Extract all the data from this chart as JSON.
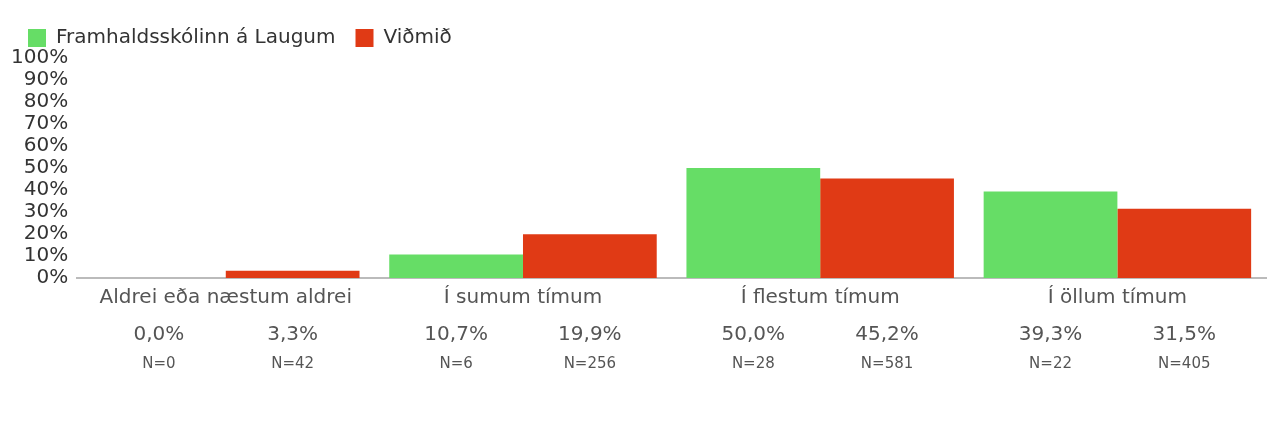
{
  "chart_data": {
    "type": "bar",
    "categories": [
      "Aldrei eða næstum aldrei",
      "Í sumum tímum",
      "Í flestum tímum",
      "Í öllum tímum"
    ],
    "series": [
      {
        "name": "Framhaldsskólinn á Laugum",
        "color": "#66dd66",
        "values": [
          0.0,
          10.7,
          50.0,
          39.3
        ],
        "value_labels": [
          "0,0%",
          "10,7%",
          "50,0%",
          "39,3%"
        ]
      },
      {
        "name": "Viðmið",
        "color": "#e03a15",
        "values": [
          3.3,
          19.9,
          45.2,
          31.5
        ],
        "value_labels": [
          "3,3%",
          "19,9%",
          "45,2%",
          "31,5%"
        ]
      }
    ],
    "ylim": [
      0,
      100
    ],
    "yticks": [
      {
        "value": 0,
        "label": "0%"
      },
      {
        "value": 10,
        "label": "10%"
      },
      {
        "value": 20,
        "label": "20%"
      },
      {
        "value": 30,
        "label": "30%"
      },
      {
        "value": 40,
        "label": "40%"
      },
      {
        "value": 50,
        "label": "50%"
      },
      {
        "value": 60,
        "label": "60%"
      },
      {
        "value": 70,
        "label": "70%"
      },
      {
        "value": 80,
        "label": "80%"
      },
      {
        "value": 90,
        "label": "90%"
      },
      {
        "value": 100,
        "label": "100%"
      }
    ],
    "grid": false,
    "legend": "top",
    "annotations": [
      "N=0",
      "N=42",
      "N=6",
      "N=256",
      "N=28",
      "N=581",
      "N=22",
      "N=405"
    ]
  }
}
